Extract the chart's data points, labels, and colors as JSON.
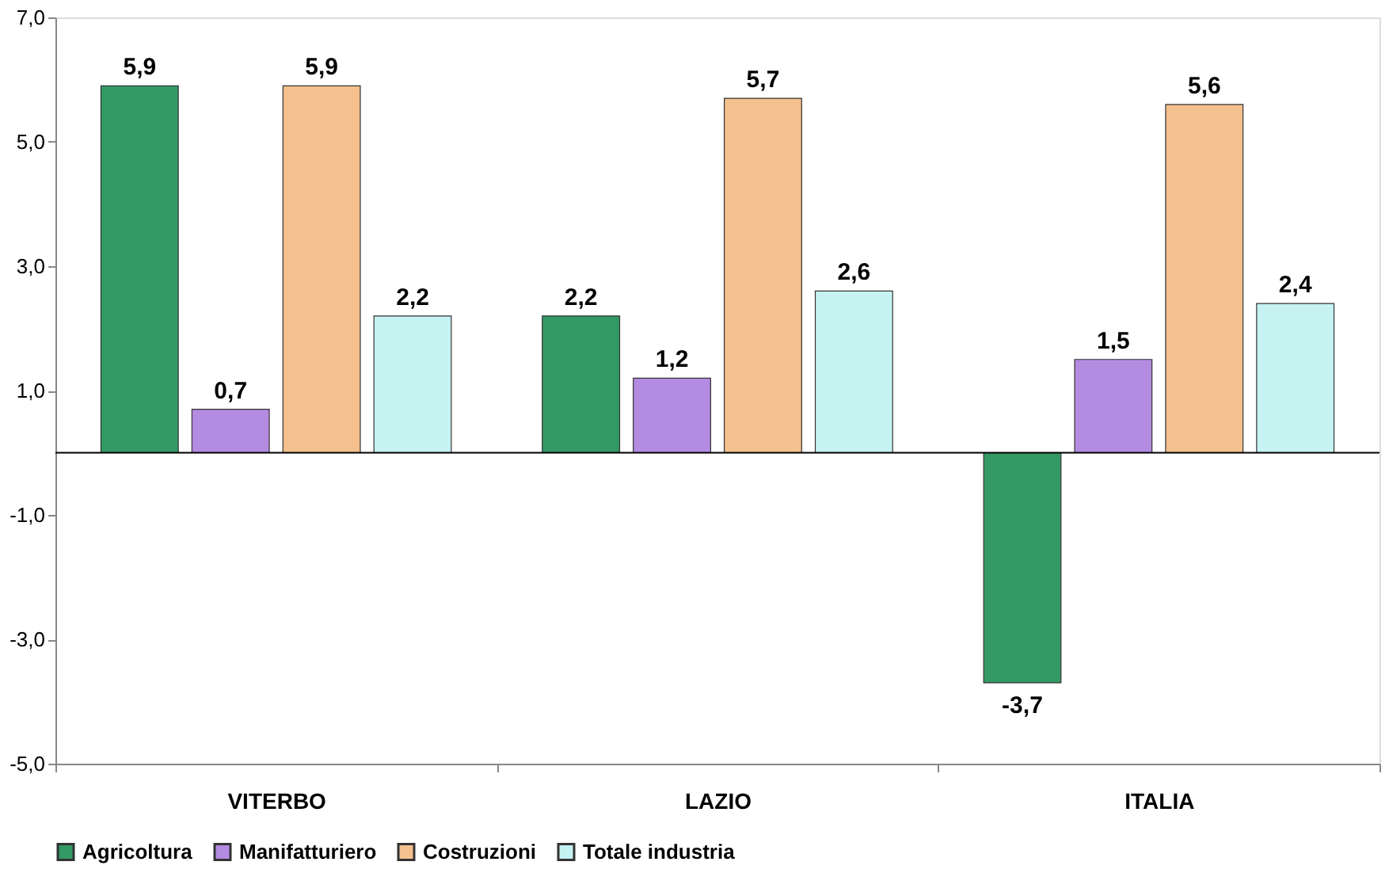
{
  "chart_data": {
    "type": "bar",
    "categories": [
      "VITERBO",
      "LAZIO",
      "ITALIA"
    ],
    "series": [
      {
        "name": "Agricoltura",
        "color": "#339966",
        "values": [
          5.9,
          2.2,
          -3.7
        ],
        "value_labels": [
          "5,9",
          "2,2",
          "-3,7"
        ]
      },
      {
        "name": "Manifatturiero",
        "color": "#b38be0",
        "values": [
          0.7,
          1.2,
          1.5
        ],
        "value_labels": [
          "0,7",
          "1,2",
          "1,5"
        ]
      },
      {
        "name": "Costruzioni",
        "color": "#f4c08e",
        "values": [
          5.9,
          5.7,
          5.6
        ],
        "value_labels": [
          "5,9",
          "5,7",
          "5,6"
        ]
      },
      {
        "name": "Totale industria",
        "color": "#c6f2f2",
        "values": [
          2.2,
          2.6,
          2.4
        ],
        "value_labels": [
          "2,2",
          "2,6",
          "2,4"
        ]
      }
    ],
    "ylim": [
      -5,
      7
    ],
    "yticks": [
      {
        "value": -5,
        "label": "-5,0"
      },
      {
        "value": -3,
        "label": "-3,0"
      },
      {
        "value": -1,
        "label": "-1,0"
      },
      {
        "value": 1,
        "label": "1,0"
      },
      {
        "value": 3,
        "label": "3,0"
      },
      {
        "value": 5,
        "label": "5,0"
      },
      {
        "value": 7,
        "label": "7,0"
      }
    ],
    "grid": false,
    "legend": "bottom"
  }
}
